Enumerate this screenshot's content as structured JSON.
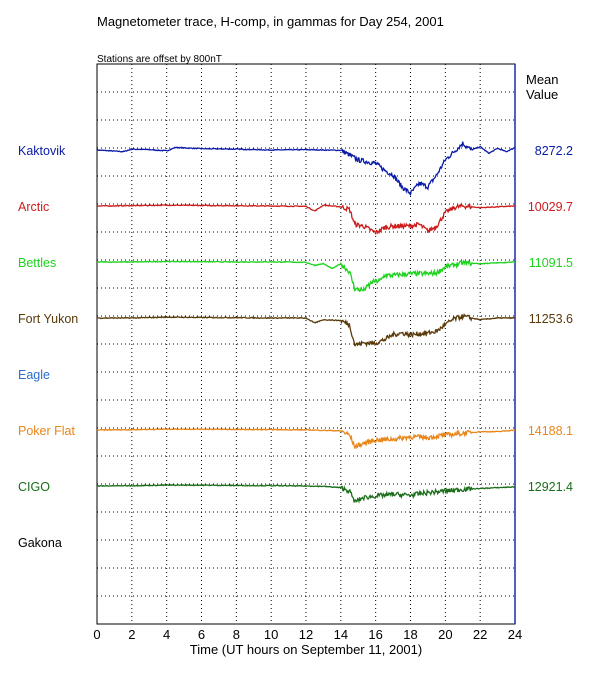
{
  "chart_data": {
    "type": "line",
    "title": "Magnetometer trace, H-comp, in gammas for Day 254, 2001",
    "subtitle": "Stations are offset by  800nT",
    "xlabel": "Time (UT hours on September 11, 2001)",
    "xlim": [
      0,
      24
    ],
    "x_ticks": [
      "0",
      "2",
      "4",
      "6",
      "8",
      "10",
      "12",
      "14",
      "16",
      "18",
      "20",
      "22",
      "24"
    ],
    "grid": true,
    "mean_header": [
      "Mean",
      "Value"
    ],
    "series": [
      {
        "name": "Kaktovik",
        "color": "#0a1aa8",
        "mean": "8272.2",
        "has_data": true,
        "points": [
          [
            0,
            0
          ],
          [
            1.5,
            -10
          ],
          [
            2,
            5
          ],
          [
            3,
            2
          ],
          [
            4,
            -5
          ],
          [
            4.5,
            15
          ],
          [
            6,
            8
          ],
          [
            8,
            5
          ],
          [
            10,
            0
          ],
          [
            12,
            2
          ],
          [
            13,
            0
          ],
          [
            14,
            -2
          ],
          [
            14.5,
            -30
          ],
          [
            15,
            -60
          ],
          [
            16,
            -80
          ],
          [
            16.5,
            -120
          ],
          [
            17,
            -150
          ],
          [
            17.5,
            -220
          ],
          [
            18,
            -260
          ],
          [
            18.5,
            -200
          ],
          [
            19,
            -220
          ],
          [
            19.5,
            -150
          ],
          [
            20,
            -60
          ],
          [
            20.5,
            -10
          ],
          [
            21,
            40
          ],
          [
            21.5,
            0
          ],
          [
            22,
            20
          ],
          [
            22.5,
            -20
          ],
          [
            23,
            10
          ],
          [
            23.5,
            -10
          ],
          [
            24,
            15
          ]
        ]
      },
      {
        "name": "Arctic",
        "color": "#cc1c1c",
        "mean": "10029.7",
        "has_data": true,
        "points": [
          [
            0,
            0
          ],
          [
            2,
            2
          ],
          [
            4,
            5
          ],
          [
            6,
            3
          ],
          [
            8,
            2
          ],
          [
            10,
            0
          ],
          [
            12,
            -2
          ],
          [
            12.5,
            -30
          ],
          [
            13,
            5
          ],
          [
            14,
            -5
          ],
          [
            14.5,
            -20
          ],
          [
            14.8,
            -110
          ],
          [
            15.3,
            -120
          ],
          [
            16,
            -160
          ],
          [
            16.5,
            -130
          ],
          [
            17,
            -120
          ],
          [
            18,
            -120
          ],
          [
            18.5,
            -110
          ],
          [
            19,
            -150
          ],
          [
            19.5,
            -120
          ],
          [
            20,
            -40
          ],
          [
            20.5,
            -10
          ],
          [
            21,
            0
          ],
          [
            22,
            -10
          ],
          [
            23,
            -5
          ],
          [
            24,
            0
          ]
        ]
      },
      {
        "name": "Bettles",
        "color": "#1ed21e",
        "mean": "11091.5",
        "has_data": true,
        "points": [
          [
            0,
            0
          ],
          [
            2,
            0
          ],
          [
            4,
            3
          ],
          [
            6,
            2
          ],
          [
            8,
            0
          ],
          [
            10,
            1
          ],
          [
            12,
            -2
          ],
          [
            12.5,
            -20
          ],
          [
            13,
            -10
          ],
          [
            13.5,
            -40
          ],
          [
            14,
            -10
          ],
          [
            14.5,
            -60
          ],
          [
            14.8,
            -160
          ],
          [
            15.3,
            -170
          ],
          [
            15.8,
            -120
          ],
          [
            16.3,
            -110
          ],
          [
            16.5,
            -80
          ],
          [
            17,
            -80
          ],
          [
            18,
            -70
          ],
          [
            19,
            -70
          ],
          [
            19.5,
            -65
          ],
          [
            20,
            -30
          ],
          [
            21,
            -5
          ],
          [
            22,
            -10
          ],
          [
            23,
            -5
          ],
          [
            24,
            0
          ]
        ]
      },
      {
        "name": "Fort Yukon",
        "color": "#5a3a0a",
        "mean": "11253.6",
        "has_data": true,
        "points": [
          [
            0,
            0
          ],
          [
            2,
            0
          ],
          [
            4,
            5
          ],
          [
            6,
            3
          ],
          [
            8,
            2
          ],
          [
            10,
            0
          ],
          [
            12,
            0
          ],
          [
            12.5,
            -30
          ],
          [
            13,
            -10
          ],
          [
            14,
            -15
          ],
          [
            14.5,
            -40
          ],
          [
            14.8,
            -160
          ],
          [
            15.3,
            -150
          ],
          [
            16,
            -150
          ],
          [
            16.5,
            -130
          ],
          [
            17,
            -100
          ],
          [
            17.5,
            -90
          ],
          [
            18,
            -100
          ],
          [
            19,
            -90
          ],
          [
            19.5,
            -80
          ],
          [
            20,
            -40
          ],
          [
            20.5,
            -5
          ],
          [
            21,
            10
          ],
          [
            22,
            -10
          ],
          [
            23,
            0
          ],
          [
            24,
            0
          ]
        ]
      },
      {
        "name": "Eagle",
        "color": "#2a70c8",
        "mean": "",
        "has_data": false,
        "points": []
      },
      {
        "name": "Poker Flat",
        "color": "#e8861a",
        "mean": "14188.1",
        "has_data": true,
        "points": [
          [
            0,
            0
          ],
          [
            2,
            2
          ],
          [
            4,
            5
          ],
          [
            6,
            5
          ],
          [
            8,
            3
          ],
          [
            10,
            2
          ],
          [
            12,
            1
          ],
          [
            13,
            -2
          ],
          [
            14,
            -5
          ],
          [
            14.5,
            -30
          ],
          [
            14.8,
            -100
          ],
          [
            15.3,
            -80
          ],
          [
            16,
            -60
          ],
          [
            17,
            -55
          ],
          [
            18,
            -40
          ],
          [
            19,
            -45
          ],
          [
            20,
            -30
          ],
          [
            21,
            -20
          ],
          [
            22,
            -10
          ],
          [
            23,
            -10
          ],
          [
            24,
            0
          ]
        ]
      },
      {
        "name": "CIGO",
        "color": "#1a6e1a",
        "mean": "12921.4",
        "has_data": true,
        "points": [
          [
            0,
            0
          ],
          [
            2,
            2
          ],
          [
            4,
            5
          ],
          [
            6,
            5
          ],
          [
            8,
            3
          ],
          [
            10,
            2
          ],
          [
            12,
            0
          ],
          [
            13,
            -2
          ],
          [
            14,
            -10
          ],
          [
            14.5,
            -30
          ],
          [
            14.8,
            -95
          ],
          [
            15.3,
            -70
          ],
          [
            16,
            -60
          ],
          [
            17,
            -50
          ],
          [
            18,
            -55
          ],
          [
            19,
            -40
          ],
          [
            20,
            -30
          ],
          [
            21,
            -20
          ],
          [
            22,
            -15
          ],
          [
            23,
            -10
          ],
          [
            24,
            -5
          ]
        ]
      },
      {
        "name": "Gakona",
        "color": "#000000",
        "mean": "",
        "has_data": false,
        "points": []
      }
    ]
  }
}
